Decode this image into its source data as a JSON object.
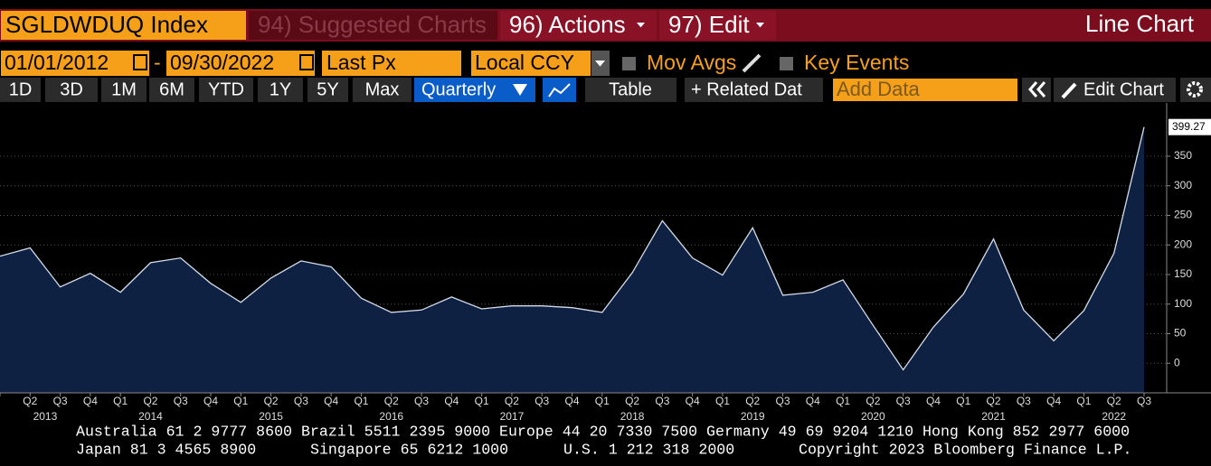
{
  "header": {
    "ticker": "SGLDWDUQ Index",
    "menu": [
      "94) Suggested Charts",
      "96) Actions",
      "97) Edit"
    ],
    "title": "Line Chart"
  },
  "controls": {
    "start_date": "01/01/2012",
    "separator": "-",
    "end_date": "09/30/2022",
    "field": "Last Px",
    "currency": "Local CCY",
    "options": [
      "Mov Avgs",
      "Key Events"
    ]
  },
  "toolbar": {
    "periods": [
      "1D",
      "3D",
      "1M",
      "6M",
      "YTD",
      "1Y",
      "5Y",
      "Max"
    ],
    "frequency": "Quarterly",
    "view": "Table",
    "related": "+ Related Dat",
    "add_data": "Add Data",
    "edit": "Edit Chart"
  },
  "chart_data": {
    "type": "area",
    "categories": [
      null,
      "Q2",
      "Q3",
      "Q4",
      "Q1",
      "Q2",
      "Q3",
      "Q4",
      "Q1",
      "Q2",
      "Q3",
      "Q4",
      "Q1",
      "Q2",
      "Q3",
      "Q4",
      "Q1",
      "Q2",
      "Q3",
      "Q4",
      "Q1",
      "Q2",
      "Q3",
      "Q4",
      "Q1",
      "Q2",
      "Q3",
      "Q4",
      "Q1",
      "Q2",
      "Q3",
      "Q4",
      "Q1",
      "Q2",
      "Q3",
      "Q4",
      "Q1",
      "Q2",
      "Q3"
    ],
    "years": [
      "2013",
      "2014",
      "2015",
      "2016",
      "2017",
      "2018",
      "2019",
      "2020",
      "2021",
      "2022"
    ],
    "values": [
      181,
      195,
      129,
      152,
      120,
      170,
      178,
      135,
      103,
      144,
      173,
      163,
      110,
      86,
      90,
      112,
      92,
      97,
      97,
      94,
      86,
      153,
      241,
      178,
      149,
      229,
      115,
      120,
      141,
      64,
      -11,
      61,
      117,
      210,
      90,
      38,
      89,
      186,
      399.27
    ],
    "color": "#0f2142",
    "line_color": "#d4dcea",
    "ylim": [
      -50,
      440
    ],
    "yticks": [
      0,
      50,
      100,
      150,
      200,
      250,
      300,
      350
    ],
    "grid": true
  },
  "footer": {
    "rows": [
      [
        "Australia 61 2 9777 8600 Brazil 5511 2395 9000 Europe 44 20 7330 7500 Germany 49 69 9204 1210 Hong Kong 852 2977 6000"
      ],
      [
        "Japan 81 3 4565 8900",
        "Singapore 65 6212 1000",
        "U.S. 1 212 318 2000",
        "Copyright 2023 Bloomberg Finance L.P."
      ]
    ]
  }
}
